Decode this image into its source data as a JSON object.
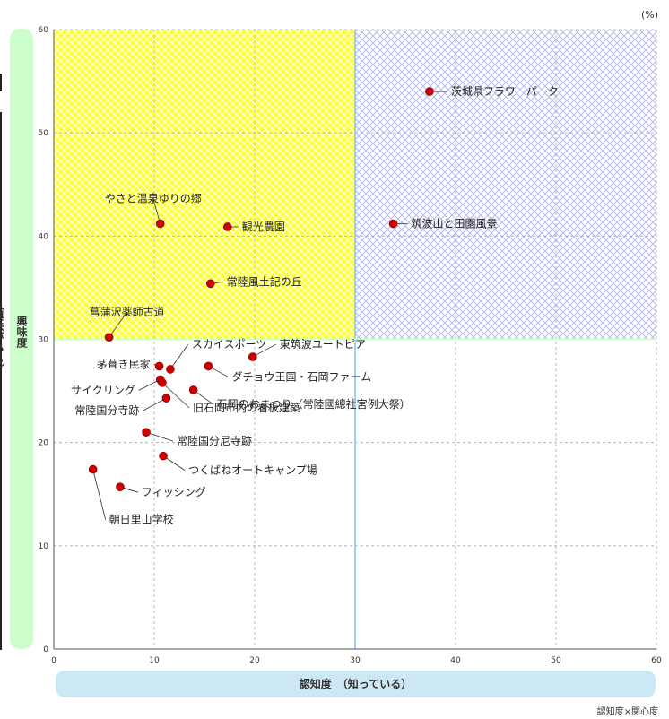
{
  "chart_data": {
    "type": "scatter",
    "unit": "(%)",
    "xlabel": "認知度　（知っている）",
    "ylabel": "興味度",
    "ylabel_sub": "（興味がある）",
    "footnote": "認知度×関心度",
    "xlim": [
      0,
      60
    ],
    "ylim": [
      0,
      60
    ],
    "xticks": [
      0,
      10,
      20,
      30,
      40,
      50,
      60
    ],
    "yticks": [
      0,
      10,
      20,
      30,
      40,
      50,
      60
    ],
    "grid": true,
    "quadrant_split": {
      "x": 30,
      "y": 30
    },
    "colors": {
      "top_left_fill": "#ffff33",
      "top_right_fill": "#ccccff",
      "x_split_line": "#99ccff",
      "y_split_line": "#ccffcc",
      "point": "#cc0000"
    },
    "points": [
      {
        "label": "茨城県フラワーパーク",
        "x": 37.4,
        "y": 54.0
      },
      {
        "label": "筑波山と田園風景",
        "x": 33.8,
        "y": 41.2
      },
      {
        "label": "やさと温泉ゆりの郷",
        "x": 10.6,
        "y": 41.2
      },
      {
        "label": "観光農園",
        "x": 17.3,
        "y": 40.9
      },
      {
        "label": "常陸風土記の丘",
        "x": 15.6,
        "y": 35.4
      },
      {
        "label": "菖蒲沢薬師古道",
        "x": 5.5,
        "y": 30.2
      },
      {
        "label": "スカイスポーツ",
        "x": 11.6,
        "y": 27.1
      },
      {
        "label": "東筑波ユートピア",
        "x": 19.8,
        "y": 28.3
      },
      {
        "label": "茅葺き民家",
        "x": 10.5,
        "y": 27.4
      },
      {
        "label": "ダチョウ王国・石岡ファーム",
        "x": 15.4,
        "y": 27.4
      },
      {
        "label": "サイクリング",
        "x": 10.6,
        "y": 26.1
      },
      {
        "label": "常陸国分寺跡",
        "x": 11.2,
        "y": 24.3
      },
      {
        "label": "旧石岡市内の看板建築",
        "x": 10.8,
        "y": 25.8
      },
      {
        "label": "石岡のおまつり（常陸國總社宮例大祭）",
        "x": 13.9,
        "y": 25.1
      },
      {
        "label": "常陸国分尼寺跡",
        "x": 9.2,
        "y": 21.0
      },
      {
        "label": "つくばねオートキャンプ場",
        "x": 10.9,
        "y": 18.7
      },
      {
        "label": "フィッシング",
        "x": 6.6,
        "y": 15.7
      },
      {
        "label": "朝日里山学校",
        "x": 3.9,
        "y": 17.4
      }
    ]
  }
}
